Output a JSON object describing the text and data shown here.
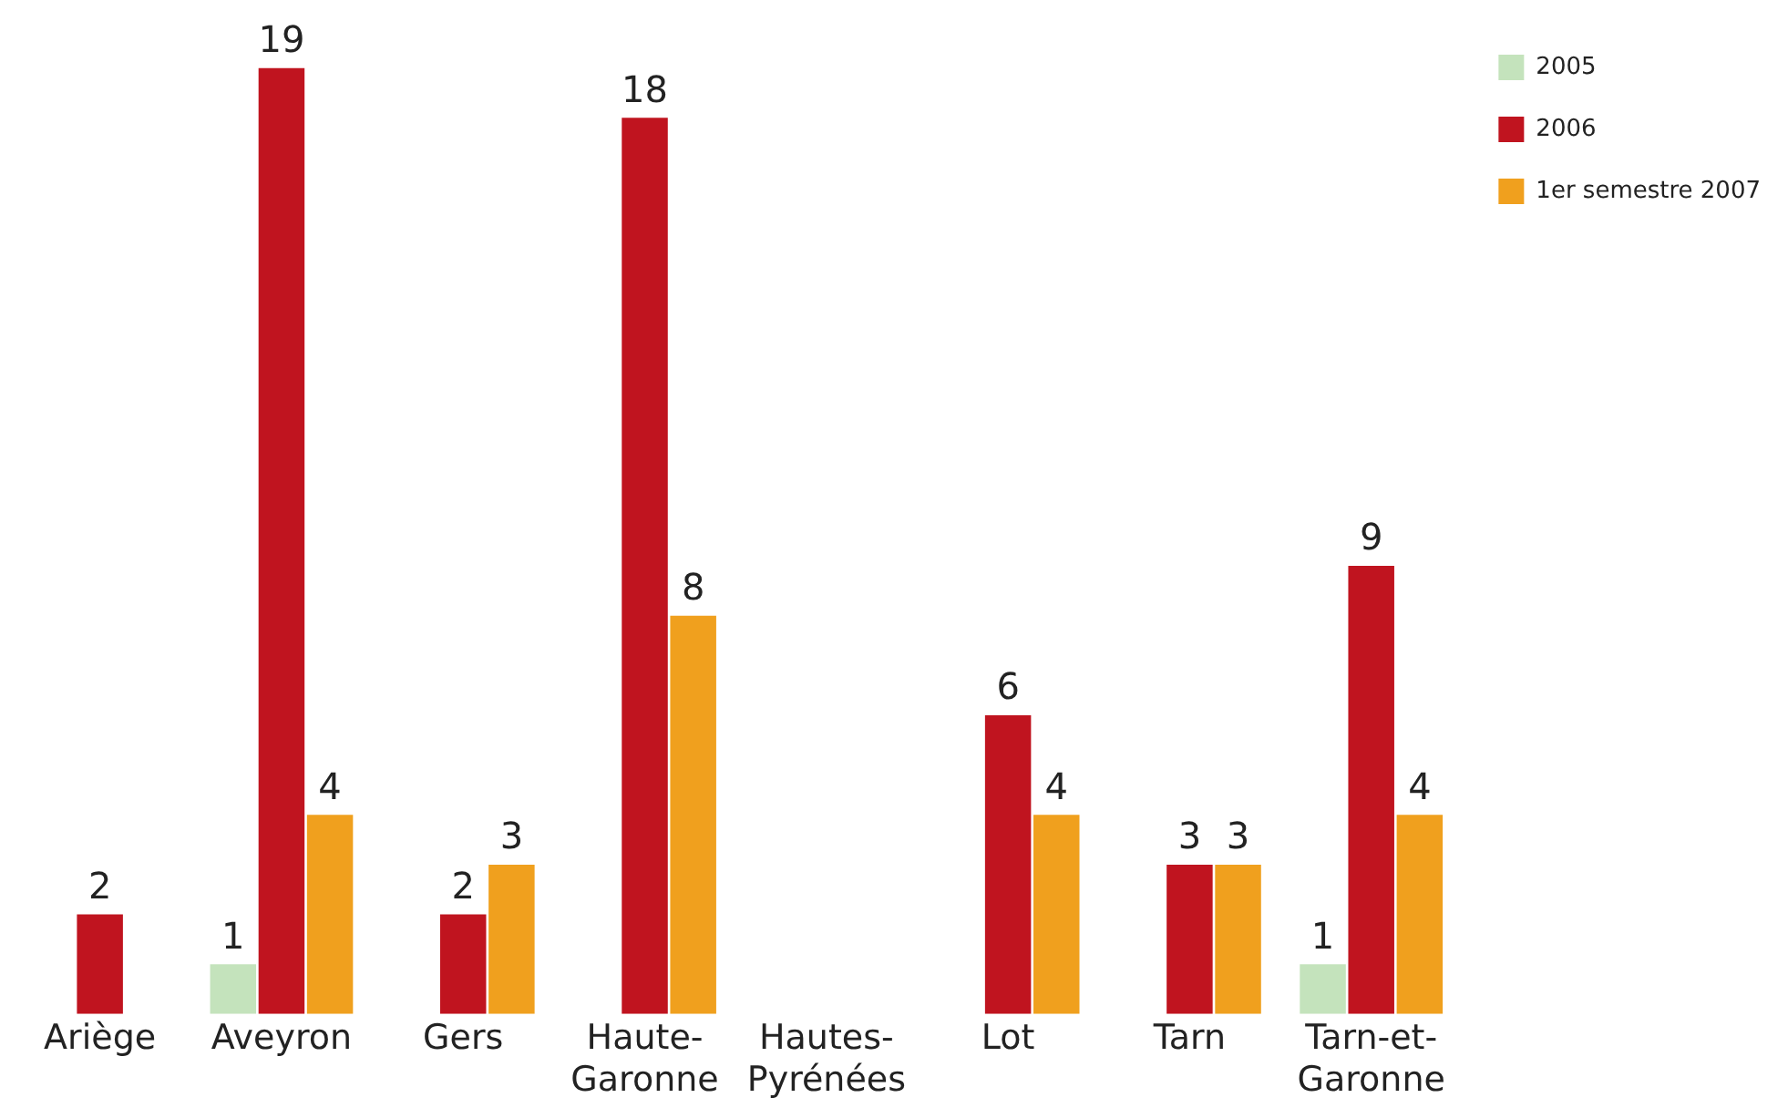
{
  "chart_data": {
    "type": "bar",
    "categories": [
      "Ariège",
      "Aveyron",
      "Gers",
      "Haute-Garonne",
      "Hautes-Pyrénées",
      "Lot",
      "Tarn",
      "Tarn-et-Garonne"
    ],
    "series": [
      {
        "name": "2005",
        "color": "#c4e3bc",
        "values": [
          0,
          1,
          0,
          0,
          0,
          0,
          0,
          1
        ],
        "value_labels": [
          null,
          "1",
          null,
          null,
          null,
          null,
          null,
          "1"
        ]
      },
      {
        "name": "2006",
        "color": "#c0141f",
        "values": [
          2,
          19,
          2,
          18,
          0,
          6,
          3,
          9
        ],
        "value_labels": [
          "2",
          "19",
          "2",
          "18",
          null,
          "6",
          "3",
          "9"
        ]
      },
      {
        "name": "1er semestre 2007",
        "color": "#f0a01e",
        "values": [
          0,
          4,
          3,
          8,
          0,
          4,
          3,
          4
        ],
        "value_labels": [
          null,
          "4",
          "3",
          "8",
          null,
          "4",
          "3",
          "4"
        ]
      }
    ],
    "legend": "top right",
    "grid": false
  }
}
